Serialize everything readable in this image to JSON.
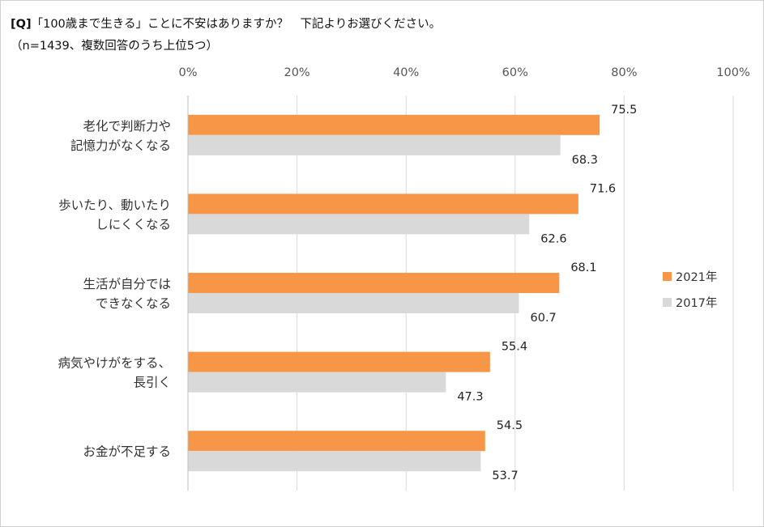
{
  "chart_data": {
    "type": "bar",
    "orientation": "horizontal",
    "title_prefix": "[Q]",
    "title": "「100歳まで生きる」ことに不安はありますか？　下記よりお選びください。",
    "subtitle": "（n=1439、複数回答のうち上位5つ）",
    "xlim": [
      0,
      100
    ],
    "x_ticks": [
      "0%",
      "20%",
      "40%",
      "60%",
      "80%",
      "100%"
    ],
    "categories": [
      [
        "老化で判断力や",
        "記憶力がなくなる"
      ],
      [
        "歩いたり、動いたり",
        "しにくくなる"
      ],
      [
        "生活が自分では",
        "できなくなる"
      ],
      [
        "病気やけがをする、",
        "長引く"
      ],
      [
        "お金が不足する"
      ]
    ],
    "series": [
      {
        "name": "2021年",
        "color": "#F79646",
        "values": [
          75.5,
          71.6,
          68.1,
          55.4,
          54.5
        ]
      },
      {
        "name": "2017年",
        "color": "#D9D9D9",
        "values": [
          68.3,
          62.6,
          60.7,
          47.3,
          53.7
        ]
      }
    ],
    "grid": true,
    "legend": "right"
  }
}
